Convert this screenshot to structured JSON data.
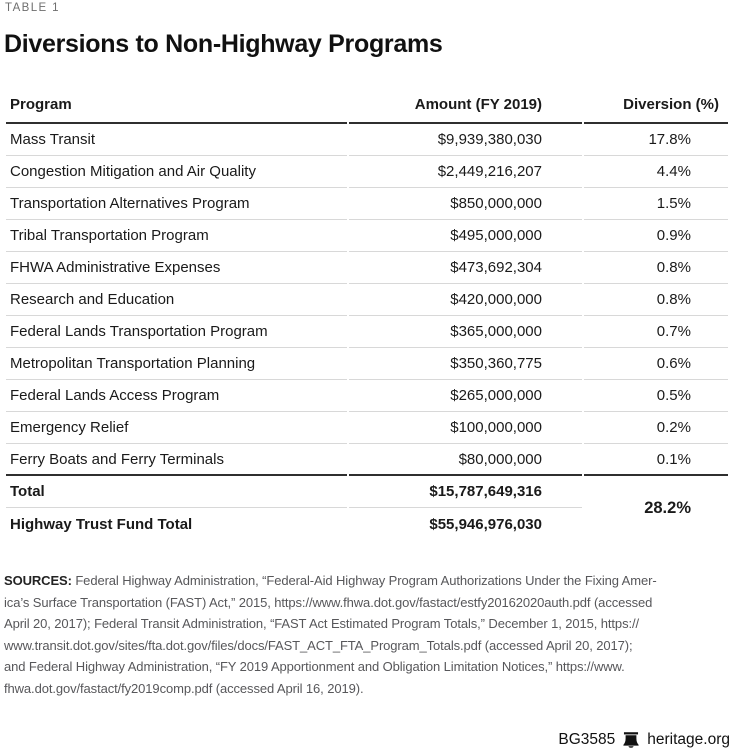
{
  "table_label": "TABLE 1",
  "title": "Diversions to Non-Highway Programs",
  "columns": [
    "Program",
    "Amount (FY 2019)",
    "Diversion (%)"
  ],
  "rows": [
    {
      "program": "Mass Transit",
      "amount": "$9,939,380,030",
      "diversion": "17.8%"
    },
    {
      "program": "Congestion Mitigation and Air Quality",
      "amount": "$2,449,216,207",
      "diversion": "4.4%"
    },
    {
      "program": "Transportation Alternatives Program",
      "amount": "$850,000,000",
      "diversion": "1.5%"
    },
    {
      "program": "Tribal Transportation Program",
      "amount": "$495,000,000",
      "diversion": "0.9%"
    },
    {
      "program": "FHWA Administrative Expenses",
      "amount": "$473,692,304",
      "diversion": "0.8%"
    },
    {
      "program": "Research and Education",
      "amount": "$420,000,000",
      "diversion": "0.8%"
    },
    {
      "program": "Federal Lands Transportation Program",
      "amount": "$365,000,000",
      "diversion": "0.7%"
    },
    {
      "program": "Metropolitan Transportation Planning",
      "amount": "$350,360,775",
      "diversion": "0.6%"
    },
    {
      "program": "Federal Lands Access Program",
      "amount": "$265,000,000",
      "diversion": "0.5%"
    },
    {
      "program": "Emergency Relief",
      "amount": "$100,000,000",
      "diversion": "0.2%"
    },
    {
      "program": "Ferry Boats and Ferry Terminals",
      "amount": "$80,000,000",
      "diversion": "0.1%"
    }
  ],
  "totals": {
    "rows": [
      {
        "label": "Total",
        "amount": "$15,787,649,316"
      },
      {
        "label": "Highway Trust Fund Total",
        "amount": "$55,946,976,030"
      }
    ],
    "combined_diversion": "28.2%"
  },
  "sources": {
    "label": "SOURCES:",
    "lines": [
      "Federal Highway Administration, “Federal-Aid Highway Program Authorizations Under the Fixing Amer-",
      "ica’s Surface Transportation (FAST) Act,” 2015, https://www.fhwa.dot.gov/fastact/estfy20162020auth.pdf (accessed",
      "April 20, 2017); Federal Transit Administration, “FAST Act Estimated Program Totals,” December 1, 2015, https://",
      "www.transit.dot.gov/sites/fta.dot.gov/files/docs/FAST_ACT_FTA_Program_Totals.pdf (accessed April 20, 2017);",
      "and Federal Highway Administration, “FY 2019 Apportionment and Obligation Limitation Notices,” https://www.",
      "fhwa.dot.gov/fastact/fy2019comp.pdf (accessed April 16, 2019)."
    ]
  },
  "footer": {
    "doc_id": "BG3585",
    "icon": "liberty-bell-icon",
    "site": "heritage.org"
  },
  "colors": {
    "rule_dark": "#2f2f2f",
    "rule_light": "#d8d8d8",
    "text": "#1a1a1a",
    "label_muted": "#6e6e6e",
    "sources_text": "#57575a"
  }
}
